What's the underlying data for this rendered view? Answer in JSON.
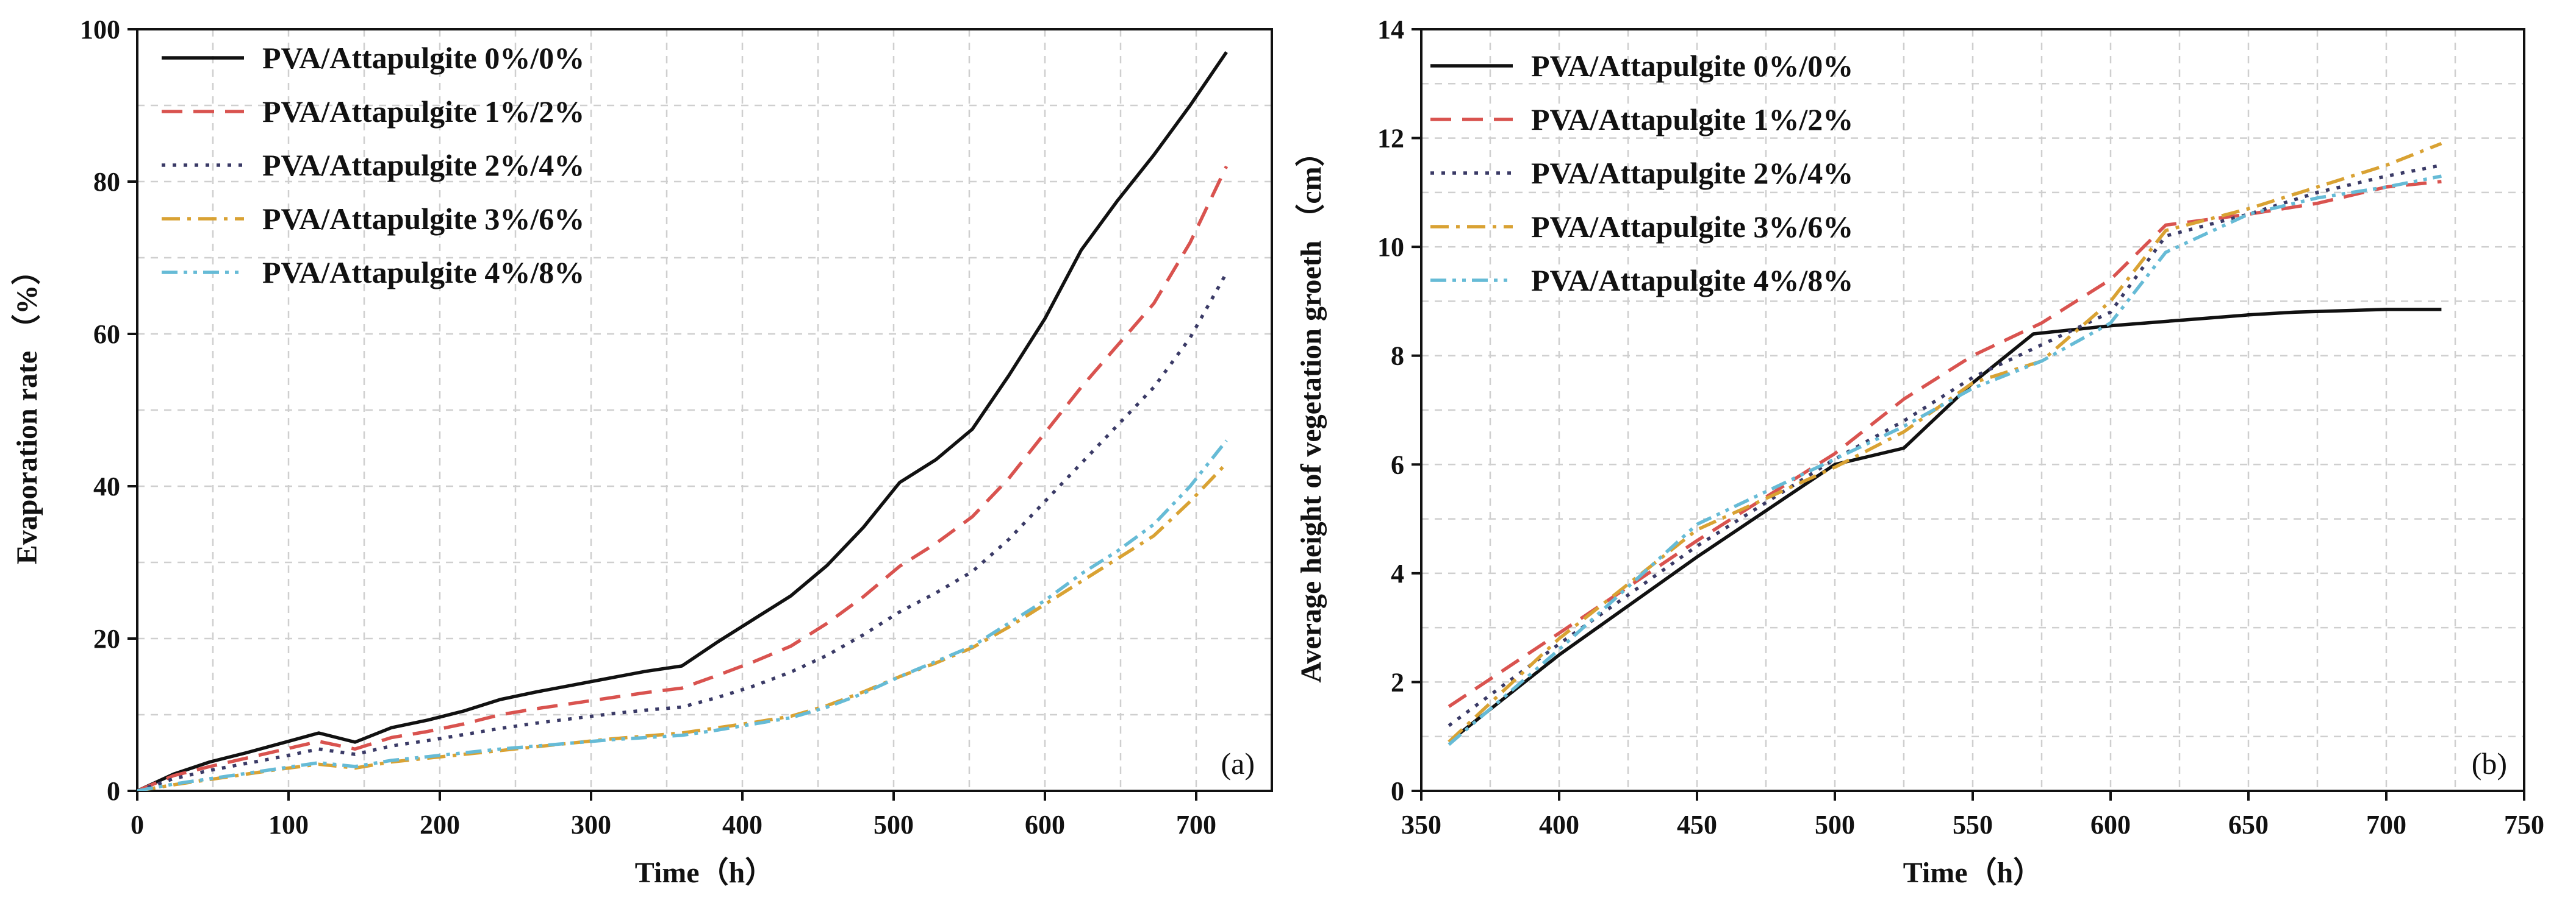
{
  "chart_data": [
    {
      "type": "line",
      "panel_label": "(a)",
      "xlabel": "Time（h）",
      "ylabel": "Evaporation rate （%）",
      "xlim": [
        0,
        750
      ],
      "ylim": [
        0,
        100
      ],
      "xticks": [
        0,
        100,
        200,
        300,
        400,
        500,
        600,
        700
      ],
      "yticks": [
        0,
        20,
        40,
        60,
        80,
        100
      ],
      "grid": true,
      "legend_position": "top-left",
      "series": [
        {
          "name": "PVA/Attapulgite 0%/0%",
          "color": "#111111",
          "style": "solid",
          "x": [
            0,
            24,
            48,
            72,
            96,
            120,
            144,
            168,
            192,
            216,
            240,
            264,
            288,
            312,
            336,
            360,
            384,
            408,
            432,
            456,
            480,
            504,
            528,
            552,
            576,
            600,
            624,
            648,
            672,
            696,
            720
          ],
          "y": [
            0,
            2.2,
            3.8,
            5.0,
            6.3,
            7.6,
            6.4,
            8.3,
            9.3,
            10.5,
            12.0,
            13.0,
            13.9,
            14.8,
            15.7,
            16.4,
            19.6,
            22.6,
            25.6,
            29.6,
            34.6,
            40.5,
            43.5,
            47.5,
            54.5,
            62.0,
            71.0,
            77.5,
            83.5,
            90.0,
            97.0
          ]
        },
        {
          "name": "PVA/Attapulgite 1%/2%",
          "color": "#d9534f",
          "style": "dashed",
          "x": [
            0,
            24,
            48,
            72,
            96,
            120,
            144,
            168,
            192,
            216,
            240,
            264,
            288,
            312,
            336,
            360,
            384,
            408,
            432,
            456,
            480,
            504,
            528,
            552,
            576,
            600,
            624,
            648,
            672,
            696,
            720
          ],
          "y": [
            0,
            2.0,
            3.2,
            4.3,
            5.4,
            6.5,
            5.5,
            7.0,
            7.8,
            8.8,
            10.0,
            10.8,
            11.5,
            12.2,
            12.9,
            13.5,
            15.2,
            17.0,
            19.0,
            22.0,
            25.5,
            29.5,
            32.5,
            36.0,
            41.0,
            47.0,
            53.0,
            58.5,
            64.0,
            72.0,
            82.0
          ]
        },
        {
          "name": "PVA/Attapulgite 2%/4%",
          "color": "#3a3a66",
          "style": "dotted",
          "x": [
            0,
            24,
            48,
            72,
            96,
            120,
            144,
            168,
            192,
            216,
            240,
            264,
            288,
            312,
            336,
            360,
            384,
            408,
            432,
            456,
            480,
            504,
            528,
            552,
            576,
            600,
            624,
            648,
            672,
            696,
            720
          ],
          "y": [
            0,
            1.6,
            2.7,
            3.6,
            4.5,
            5.5,
            4.8,
            5.9,
            6.6,
            7.4,
            8.2,
            8.9,
            9.5,
            10.1,
            10.6,
            11.0,
            12.3,
            13.8,
            15.6,
            17.8,
            20.5,
            23.5,
            26.0,
            28.8,
            33.0,
            38.0,
            43.0,
            48.0,
            53.0,
            59.5,
            68.0
          ]
        },
        {
          "name": "PVA/Attapulgite 3%/6%",
          "color": "#d9a233",
          "style": "dashdot",
          "x": [
            0,
            24,
            48,
            72,
            96,
            120,
            144,
            168,
            192,
            216,
            240,
            264,
            288,
            312,
            336,
            360,
            384,
            408,
            432,
            456,
            480,
            504,
            528,
            552,
            576,
            600,
            624,
            648,
            672,
            696,
            720
          ],
          "y": [
            0,
            0.8,
            1.5,
            2.2,
            2.9,
            3.5,
            3.0,
            3.8,
            4.3,
            4.8,
            5.3,
            5.8,
            6.3,
            6.8,
            7.2,
            7.6,
            8.3,
            9.0,
            9.8,
            11.2,
            13.0,
            15.0,
            16.8,
            18.8,
            21.5,
            24.5,
            27.5,
            30.5,
            33.5,
            38.0,
            43.0
          ]
        },
        {
          "name": "PVA/Attapulgite 4%/8%",
          "color": "#66bbd6",
          "style": "dashdotdot",
          "x": [
            0,
            24,
            48,
            72,
            96,
            120,
            144,
            168,
            192,
            216,
            240,
            264,
            288,
            312,
            336,
            360,
            384,
            408,
            432,
            456,
            480,
            504,
            528,
            552,
            576,
            600,
            624,
            648,
            672,
            696,
            720
          ],
          "y": [
            0,
            0.9,
            1.6,
            2.3,
            3.0,
            3.7,
            3.2,
            4.0,
            4.5,
            5.0,
            5.5,
            5.9,
            6.3,
            6.7,
            7.0,
            7.3,
            8.0,
            8.8,
            9.6,
            11.0,
            12.8,
            15.0,
            17.0,
            19.0,
            22.0,
            25.0,
            28.5,
            31.5,
            35.0,
            40.0,
            46.0
          ]
        }
      ]
    },
    {
      "type": "line",
      "panel_label": "(b)",
      "xlabel": "Time（h）",
      "ylabel": "Average height of vegetation groeth （cm）",
      "xlim": [
        350,
        750
      ],
      "ylim": [
        0,
        14
      ],
      "xticks": [
        350,
        400,
        450,
        500,
        550,
        600,
        650,
        700,
        750
      ],
      "yticks": [
        0,
        2,
        4,
        6,
        8,
        10,
        12,
        14
      ],
      "grid": true,
      "legend_position": "top-left",
      "series": [
        {
          "name": "PVA/Attapulgite 0%/0%",
          "color": "#111111",
          "style": "solid",
          "x": [
            360,
            400,
            450,
            500,
            525,
            550,
            572,
            600,
            625,
            650,
            667,
            700,
            720
          ],
          "y": [
            0.9,
            2.5,
            4.3,
            6.0,
            6.3,
            7.5,
            8.4,
            8.55,
            8.65,
            8.75,
            8.8,
            8.85,
            8.85
          ]
        },
        {
          "name": "PVA/Attapulgite 1%/2%",
          "color": "#d9534f",
          "style": "dashed",
          "x": [
            360,
            400,
            450,
            500,
            525,
            550,
            575,
            600,
            620,
            650,
            675,
            700,
            720
          ],
          "y": [
            1.55,
            2.9,
            4.6,
            6.2,
            7.2,
            8.0,
            8.6,
            9.4,
            10.4,
            10.6,
            10.8,
            11.1,
            11.2
          ]
        },
        {
          "name": "PVA/Attapulgite 2%/4%",
          "color": "#3a3a66",
          "style": "dotted",
          "x": [
            360,
            400,
            450,
            500,
            525,
            550,
            575,
            600,
            620,
            650,
            675,
            700,
            720
          ],
          "y": [
            1.2,
            2.7,
            4.5,
            6.1,
            6.8,
            7.6,
            8.2,
            8.8,
            10.2,
            10.6,
            11.0,
            11.3,
            11.5
          ]
        },
        {
          "name": "PVA/Attapulgite 3%/6%",
          "color": "#d9a233",
          "style": "dashdot",
          "x": [
            360,
            400,
            450,
            500,
            525,
            550,
            575,
            600,
            620,
            650,
            675,
            700,
            720
          ],
          "y": [
            0.9,
            2.8,
            4.8,
            5.95,
            6.6,
            7.5,
            7.9,
            9.0,
            10.3,
            10.7,
            11.1,
            11.5,
            11.9
          ]
        },
        {
          "name": "PVA/Attapulgite 4%/8%",
          "color": "#66bbd6",
          "style": "dashdotdot",
          "x": [
            360,
            400,
            450,
            500,
            525,
            550,
            575,
            600,
            620,
            650,
            675,
            700,
            720
          ],
          "y": [
            0.85,
            2.6,
            4.9,
            6.1,
            6.7,
            7.4,
            7.9,
            8.6,
            9.9,
            10.6,
            10.9,
            11.1,
            11.3
          ]
        }
      ]
    }
  ]
}
